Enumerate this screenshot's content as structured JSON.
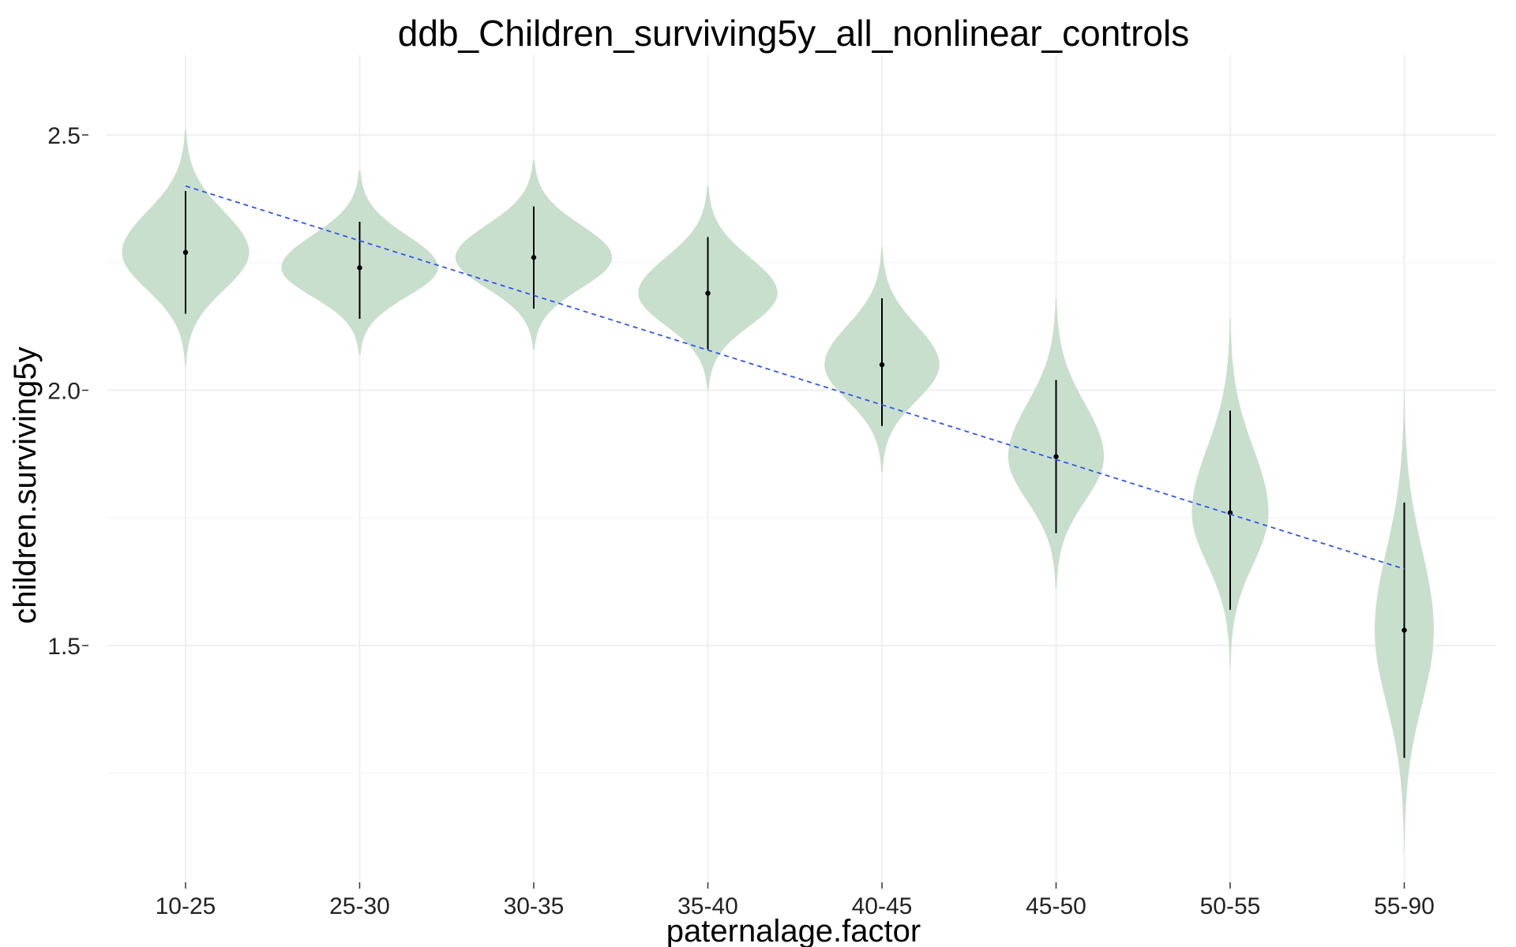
{
  "chart_data": {
    "type": "violin",
    "title": "ddb_Children_surviving5y_all_nonlinear_controls",
    "xlabel": "paternalage.factor",
    "ylabel": "children.surviving5y",
    "categories": [
      "10-25",
      "25-30",
      "30-35",
      "35-40",
      "40-45",
      "45-50",
      "50-55",
      "55-90"
    ],
    "y_ticks": [
      {
        "value": 1.5,
        "label": "1.5"
      },
      {
        "value": 2.0,
        "label": "2.0"
      },
      {
        "value": 2.5,
        "label": "2.5"
      }
    ],
    "ylim": [
      1.0,
      2.67
    ],
    "grid": true,
    "series": [
      {
        "mark": "violin",
        "color": "#c9dfce",
        "values": [
          {
            "category": "10-25",
            "median": 2.27,
            "lower": 2.15,
            "upper": 2.39,
            "min": 2.05,
            "max": 2.51,
            "spread": 0.73
          },
          {
            "category": "25-30",
            "median": 2.24,
            "lower": 2.14,
            "upper": 2.33,
            "min": 2.07,
            "max": 2.43,
            "spread": 0.9
          },
          {
            "category": "30-35",
            "median": 2.26,
            "lower": 2.16,
            "upper": 2.36,
            "min": 2.08,
            "max": 2.45,
            "spread": 0.9
          },
          {
            "category": "35-40",
            "median": 2.19,
            "lower": 2.08,
            "upper": 2.3,
            "min": 2.0,
            "max": 2.4,
            "spread": 0.8
          },
          {
            "category": "40-45",
            "median": 2.05,
            "lower": 1.93,
            "upper": 2.18,
            "min": 1.84,
            "max": 2.28,
            "spread": 0.66
          },
          {
            "category": "45-50",
            "median": 1.87,
            "lower": 1.72,
            "upper": 2.02,
            "min": 1.61,
            "max": 2.18,
            "spread": 0.55
          },
          {
            "category": "50-55",
            "median": 1.76,
            "lower": 1.57,
            "upper": 1.96,
            "min": 1.46,
            "max": 2.14,
            "spread": 0.44
          },
          {
            "category": "55-90",
            "median": 1.53,
            "lower": 1.28,
            "upper": 1.78,
            "min": 1.1,
            "max": 2.0,
            "spread": 0.34
          }
        ]
      },
      {
        "mark": "trend-line",
        "style": "dashed",
        "color": "#3355ee",
        "x": [
          "10-25",
          "55-90"
        ],
        "y": [
          2.4,
          1.65
        ]
      }
    ]
  }
}
